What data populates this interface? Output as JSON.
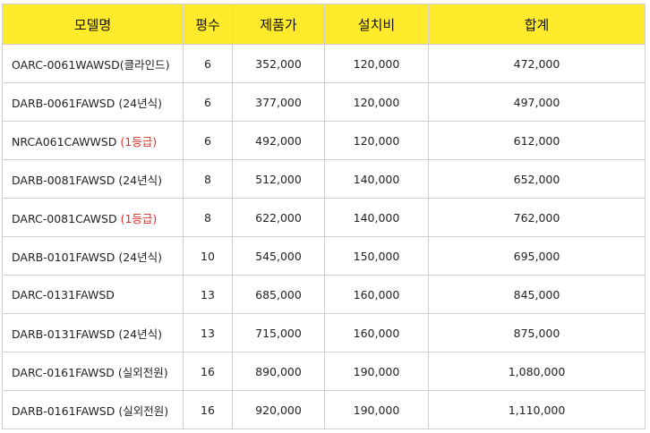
{
  "table": {
    "headers": [
      "모델명",
      "평수",
      "제품가",
      "설치비",
      "합계"
    ],
    "rows": [
      {
        "model": "OARC-0061WAWSD(클라인드)",
        "note": "",
        "pyeong": "6",
        "price": "352,000",
        "install": "120,000",
        "total": "472,000"
      },
      {
        "model": "DARB-0061FAWSD (24년식)",
        "note": "",
        "pyeong": "6",
        "price": "377,000",
        "install": "120,000",
        "total": "497,000"
      },
      {
        "model": "NRCA061CAWWSD ",
        "note": "(1등급)",
        "pyeong": "6",
        "price": "492,000",
        "install": "120,000",
        "total": "612,000"
      },
      {
        "model": "DARB-0081FAWSD (24년식)",
        "note": "",
        "pyeong": "8",
        "price": "512,000",
        "install": "140,000",
        "total": "652,000"
      },
      {
        "model": "DARC-0081CAWSD ",
        "note": "(1등급)",
        "pyeong": "8",
        "price": "622,000",
        "install": "140,000",
        "total": "762,000"
      },
      {
        "model": "DARB-0101FAWSD (24년식)",
        "note": "",
        "pyeong": "10",
        "price": "545,000",
        "install": "150,000",
        "total": "695,000"
      },
      {
        "model": "DARC-0131FAWSD",
        "note": "",
        "pyeong": "13",
        "price": "685,000",
        "install": "160,000",
        "total": "845,000"
      },
      {
        "model": "DARB-0131FAWSD (24년식)",
        "note": "",
        "pyeong": "13",
        "price": "715,000",
        "install": "160,000",
        "total": "875,000"
      },
      {
        "model": "DARC-0161FAWSD (실외전원)",
        "note": "",
        "pyeong": "16",
        "price": "890,000",
        "install": "190,000",
        "total": "1,080,000"
      },
      {
        "model": "DARB-0161FAWSD (실외전원)",
        "note": "",
        "pyeong": "16",
        "price": "920,000",
        "install": "190,000",
        "total": "1,110,000"
      }
    ]
  },
  "colors": {
    "header_bg": "#ffea2c",
    "grade_note": "#e0302a",
    "border": "#cfcfcf"
  }
}
